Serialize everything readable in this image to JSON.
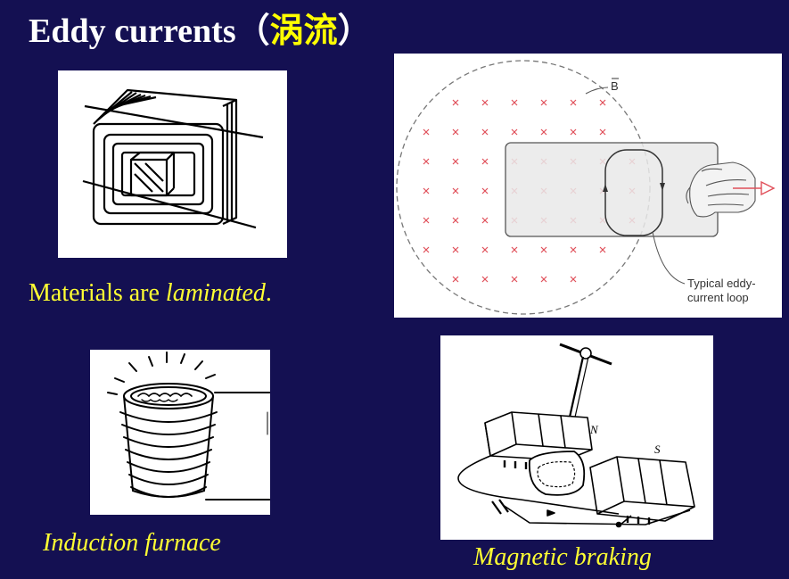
{
  "title": {
    "main": "Eddy currents",
    "paren_open": "（",
    "chinese": "涡流",
    "paren_close": "）"
  },
  "panels": {
    "laminated": {
      "caption_plain": "Materials are ",
      "caption_italic": "laminated",
      "caption_end": "."
    },
    "eddy_loop": {
      "field_label": "B",
      "loop_label_line1": "Typical eddy-",
      "loop_label_line2": "current loop"
    },
    "induction": {
      "caption": "Induction furnace"
    },
    "braking": {
      "caption": "Magnetic braking",
      "pole_n": "N",
      "pole_s": "S"
    }
  },
  "colors": {
    "background": "#141052",
    "title_text": "#ffffff",
    "accent_text": "#ffff00",
    "caption_text": "#ffff33",
    "field_marks": "#e0505a",
    "pull_arrow": "#e0505a"
  },
  "icons": [
    "laminated-core-figure",
    "eddy-current-loop-figure",
    "induction-furnace-figure",
    "magnetic-braking-figure"
  ]
}
